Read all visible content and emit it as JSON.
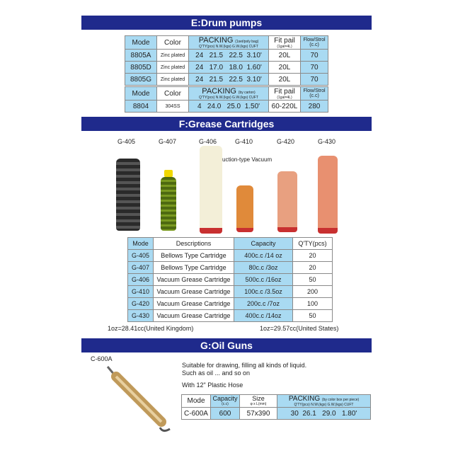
{
  "sections": {
    "drum": "E:Drum pumps",
    "grease": "F:Grease Cartridges",
    "oil": "G:Oil Guns"
  },
  "drum": {
    "headers": {
      "mode": "Mode",
      "color": "Color",
      "packing": "PACKING",
      "packing_note1": "(1set/poly bag)",
      "packing_note2": "(by carton)",
      "packing_sub": "Q'TY(pcs) N.W.(kgs) G.W.(kgs) CUFT",
      "fit": "Fit pail",
      "fit_sub": "(1gal=4L)",
      "flow": "Flow/Strol",
      "flow_sub": "(c.c)"
    },
    "rows": [
      {
        "mode": "8805A",
        "color": "Zinc plated",
        "qty": "24",
        "nw": "21.5",
        "gw": "22.5",
        "cuft": "3.10'",
        "fit": "20L",
        "flow": "70"
      },
      {
        "mode": "8805D",
        "color": "Zinc plated",
        "qty": "24",
        "nw": "17.0",
        "gw": "18.0",
        "cuft": "1.60'",
        "fit": "20L",
        "flow": "70"
      },
      {
        "mode": "8805G",
        "color": "Zinc plated",
        "qty": "24",
        "nw": "21.5",
        "gw": "22.5",
        "cuft": "3.10'",
        "fit": "20L",
        "flow": "70"
      }
    ],
    "row2": {
      "mode": "8804",
      "color": "304SS",
      "qty": "4",
      "nw": "24.0",
      "gw": "25.0",
      "cuft": "1.50'",
      "fit": "60-220L",
      "flow": "280"
    }
  },
  "cartridges": {
    "labels": [
      "G-405",
      "G-407",
      "G-406",
      "G-410",
      "G-420",
      "G-430"
    ],
    "vacuum_note": "suction-type Vacuum"
  },
  "grease": {
    "headers": [
      "Mode",
      "Descriptions",
      "Capacity",
      "Q'TY(pcs)"
    ],
    "rows": [
      [
        "G-405",
        "Bellows Type Cartridge",
        "400c.c /14 oz",
        "20"
      ],
      [
        "G-407",
        "Bellows Type Cartridge",
        "80c.c /3oz",
        "20"
      ],
      [
        "G-406",
        "Vacuum Grease Cartridge",
        "500c.c /16oz",
        "50"
      ],
      [
        "G-410",
        "Vacuum Grease Cartridge",
        "100c.c /3.5oz",
        "200"
      ],
      [
        "G-420",
        "Vacuum Grease Cartridge",
        "200c.c /7oz",
        "100"
      ],
      [
        "G-430",
        "Vacuum Grease Cartridge",
        "400c.c /14oz",
        "50"
      ]
    ],
    "note_uk": "1oz=28.41cc(United Kingdom)",
    "note_us": "1oz=29.57cc(United States)"
  },
  "oil": {
    "label": "C-600A",
    "desc1": "Suitable for drawing, filling all kinds of liquid.",
    "desc2": "Such as oil ... and so on",
    "desc3": "With 12\" Plastic Hose",
    "headers": {
      "mode": "Mode",
      "capacity": "Capacity",
      "capacity_sub": "(c.c)",
      "size": "Size",
      "size_sub": "φ x L(mm)",
      "packing": "PACKING",
      "packing_note": "(by color box per piece)",
      "packing_sub": "Q'TY(pcs) N.W.(kgs) G.W.(kgs) CUFT"
    },
    "row": {
      "mode": "C-600A",
      "capacity": "600",
      "size": "57x390",
      "qty": "30",
      "nw": "26.1",
      "gw": "29.0",
      "cuft": "1.80'"
    }
  }
}
